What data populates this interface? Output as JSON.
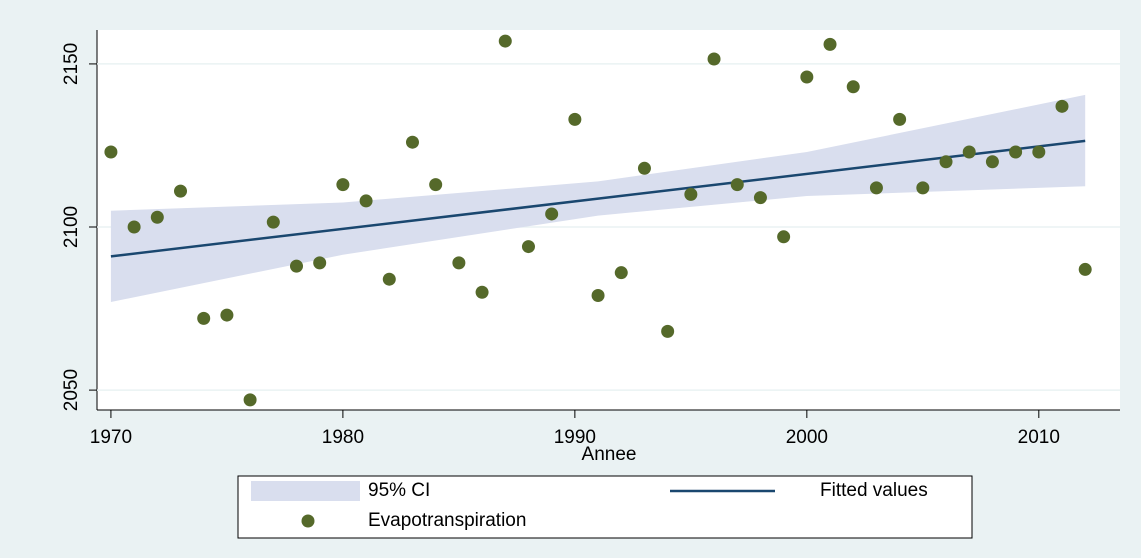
{
  "chart_data": {
    "type": "scatter",
    "xlabel": "Annee",
    "xlim": [
      1969.4,
      2013.5
    ],
    "xticks": [
      1970,
      1980,
      1990,
      2000,
      2010
    ],
    "ylim": [
      2043.9,
      2160.4
    ],
    "yticks": [
      2050,
      2100,
      2150
    ],
    "grid": true,
    "series": [
      {
        "name": "95% CI",
        "type": "band",
        "color": "#d9deee",
        "x": [
          1970,
          1980,
          1991,
          2000,
          2012
        ],
        "lower": [
          2077,
          2091.5,
          2103.5,
          2109.5,
          2112.5
        ],
        "upper": [
          2105,
          2107.5,
          2114,
          2123,
          2140.5
        ]
      },
      {
        "name": "Fitted values",
        "type": "line",
        "color": "#1a476f",
        "x": [
          1970,
          2012
        ],
        "values": [
          2091,
          2126.4
        ]
      },
      {
        "name": "Evapotranspiration",
        "type": "scatter",
        "color": "#55692a",
        "x": [
          1970,
          1971,
          1972,
          1973,
          1974,
          1975,
          1976,
          1977,
          1978,
          1979,
          1980,
          1981,
          1982,
          1983,
          1984,
          1985,
          1986,
          1987,
          1988,
          1989,
          1990,
          1991,
          1992,
          1993,
          1994,
          1995,
          1996,
          1997,
          1998,
          1999,
          2000,
          2001,
          2002,
          2003,
          2004,
          2005,
          2006,
          2007,
          2008,
          2009,
          2010,
          2011,
          2012
        ],
        "values": [
          2123,
          2100,
          2103,
          2111,
          2072,
          2073,
          2047,
          2101.5,
          2088,
          2089,
          2113,
          2108,
          2084,
          2126,
          2113,
          2089,
          2080,
          2157,
          2094,
          2104,
          2133,
          2079,
          2086,
          2118,
          2068,
          2110,
          2151.5,
          2113,
          2109,
          2097,
          2146,
          2156,
          2143,
          2112,
          2133,
          2112,
          2120,
          2123,
          2120,
          2123,
          2123,
          2137,
          2087
        ]
      }
    ]
  }
}
